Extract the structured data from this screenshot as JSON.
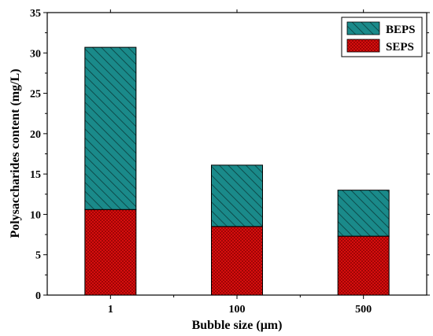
{
  "chart_data": {
    "type": "bar",
    "stacked": true,
    "categories": [
      "1",
      "100",
      "500"
    ],
    "series": [
      {
        "name": "SEPS",
        "values": [
          10.6,
          8.5,
          7.3
        ],
        "color": "#e01010",
        "pattern": "crosshatch"
      },
      {
        "name": "BEPS",
        "values": [
          20.1,
          7.6,
          5.7
        ],
        "color": "#1a8a8a",
        "pattern": "diagonal"
      }
    ],
    "legend_order": [
      "BEPS",
      "SEPS"
    ],
    "xlabel": "Bubble size (μm)",
    "ylabel": "Polysaccharides content (mg/L)",
    "ylim": [
      0,
      35
    ],
    "yticks": [
      "0",
      "5",
      "10",
      "15",
      "20",
      "25",
      "30",
      "35"
    ],
    "grid": false,
    "legend_position": "top-right"
  }
}
